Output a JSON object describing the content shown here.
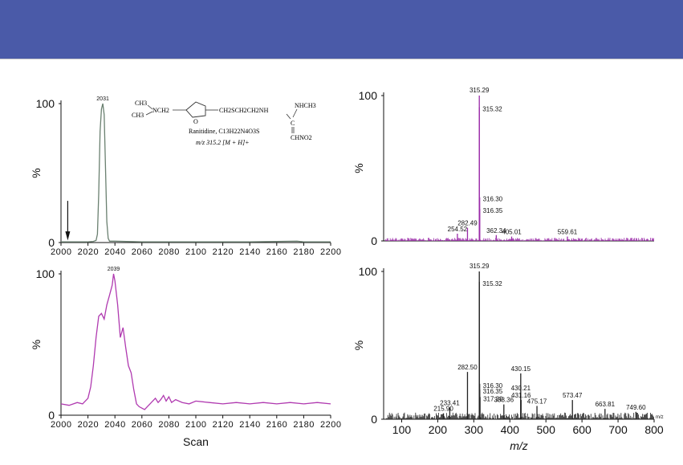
{
  "banner": {
    "color": "#4a5aa8"
  },
  "structure": {
    "dimethyl_top": "CH3",
    "dimethyl_bottom": "CH3",
    "amine_link": "NCH2",
    "chain": "CH2SCH2CH2NH",
    "nhch3": "NHCH3",
    "center_c": "C",
    "chno2": "CHNO2",
    "caption1": "Ranitidine, C13H22N4O3S",
    "caption2": "m/z 315.2 [M + H]+"
  },
  "chart_data": [
    {
      "type": "line",
      "panel": "top-left",
      "x": [
        2000,
        2004,
        2008,
        2012,
        2016,
        2020,
        2024,
        2026,
        2027,
        2028,
        2029,
        2030,
        2031,
        2032,
        2033,
        2034,
        2035,
        2036,
        2040,
        2060,
        2100,
        2140,
        2175,
        2180,
        2200
      ],
      "y": [
        0.5,
        0.5,
        0.5,
        0.5,
        0.5,
        0.5,
        0.8,
        1.5,
        6,
        35,
        80,
        96,
        100,
        92,
        55,
        15,
        3,
        1,
        1,
        0.5,
        0.5,
        0.5,
        1,
        0.5,
        0.5
      ],
      "peak_label": "2031",
      "xlim": [
        2000,
        2200
      ],
      "ylim": [
        0,
        100
      ],
      "xticks": [
        "2000",
        "2020",
        "2040",
        "2060",
        "2080",
        "2100",
        "2120",
        "2140",
        "2160",
        "2180",
        "2200"
      ],
      "yticks": [
        "0",
        "100"
      ],
      "ylabel": "%",
      "line_color": "#6a8070",
      "arrow_x": 2005
    },
    {
      "type": "line",
      "panel": "bottom-left",
      "x": [
        2000,
        2006,
        2012,
        2016,
        2020,
        2022,
        2024,
        2026,
        2028,
        2030,
        2032,
        2034,
        2036,
        2038,
        2039,
        2040,
        2042,
        2044,
        2046,
        2048,
        2050,
        2052,
        2054,
        2056,
        2058,
        2060,
        2062,
        2064,
        2066,
        2068,
        2070,
        2072,
        2074,
        2076,
        2078,
        2080,
        2082,
        2085,
        2090,
        2095,
        2100,
        2110,
        2120,
        2130,
        2140,
        2150,
        2160,
        2170,
        2180,
        2190,
        2200
      ],
      "y": [
        8,
        7,
        9,
        8,
        12,
        20,
        35,
        55,
        70,
        72,
        68,
        78,
        85,
        92,
        100,
        95,
        78,
        55,
        62,
        48,
        35,
        30,
        18,
        8,
        6,
        5,
        4,
        6,
        8,
        10,
        12,
        9,
        11,
        14,
        10,
        13,
        9,
        11,
        9,
        8,
        10,
        9,
        8,
        9,
        8,
        9,
        8,
        9,
        8,
        9,
        8
      ],
      "peak_label": "2039",
      "xlim": [
        2000,
        2200
      ],
      "ylim": [
        0,
        100
      ],
      "xticks": [
        "2000",
        "2020",
        "2040",
        "2060",
        "2080",
        "2100",
        "2120",
        "2140",
        "2160",
        "2180",
        "2200"
      ],
      "yticks": [
        "0",
        "100"
      ],
      "ylabel": "%",
      "xlabel": "Scan",
      "line_color": "#b03ab0"
    },
    {
      "type": "bar",
      "panel": "top-right",
      "xlim": [
        50,
        800
      ],
      "ylim": [
        0,
        100
      ],
      "yticks": [
        "0",
        "100"
      ],
      "ylabel": "%",
      "color": "#9a2aa8",
      "peaks": [
        {
          "x": 315.29,
          "y": 100,
          "label": "315.29"
        },
        {
          "x": 315.32,
          "y": 92,
          "label": "315.32"
        },
        {
          "x": 316.3,
          "y": 30,
          "label": "316.30"
        },
        {
          "x": 316.35,
          "y": 22,
          "label": "316.35"
        },
        {
          "x": 282.49,
          "y": 9,
          "label": "282.49"
        },
        {
          "x": 254.52,
          "y": 5,
          "label": "254.52"
        },
        {
          "x": 362.34,
          "y": 4,
          "label": "362.34"
        },
        {
          "x": 405.01,
          "y": 3,
          "label": "405.01"
        },
        {
          "x": 559.61,
          "y": 3,
          "label": "559.61"
        }
      ]
    },
    {
      "type": "bar",
      "panel": "bottom-right",
      "xlim": [
        50,
        800
      ],
      "ylim": [
        0,
        100
      ],
      "xticks": [
        "100",
        "200",
        "300",
        "400",
        "500",
        "600",
        "700",
        "800"
      ],
      "yticks": [
        "0",
        "100"
      ],
      "ylabel": "%",
      "xlabel": "m/z",
      "axis_unit": "m/z",
      "color": "#222222",
      "peaks": [
        {
          "x": 315.29,
          "y": 100,
          "label": "315.29"
        },
        {
          "x": 315.32,
          "y": 93,
          "label": "315.32"
        },
        {
          "x": 282.5,
          "y": 32,
          "label": "282.50"
        },
        {
          "x": 430.15,
          "y": 31,
          "label": "430.15"
        },
        {
          "x": 316.3,
          "y": 24,
          "label": "316.30"
        },
        {
          "x": 316.35,
          "y": 20,
          "label": "316.35"
        },
        {
          "x": 430.21,
          "y": 18,
          "label": "430.21"
        },
        {
          "x": 317.29,
          "y": 15,
          "label": "317.29"
        },
        {
          "x": 431.16,
          "y": 13,
          "label": "431.16"
        },
        {
          "x": 573.47,
          "y": 13,
          "label": "573.47"
        },
        {
          "x": 383.36,
          "y": 10,
          "label": "383.36"
        },
        {
          "x": 475.17,
          "y": 9,
          "label": "475.17"
        },
        {
          "x": 233.41,
          "y": 8,
          "label": "233.41"
        },
        {
          "x": 663.81,
          "y": 7,
          "label": "663.81"
        },
        {
          "x": 215.9,
          "y": 4,
          "label": "215.90"
        },
        {
          "x": 749.6,
          "y": 5,
          "label": "749.60"
        }
      ]
    }
  ]
}
